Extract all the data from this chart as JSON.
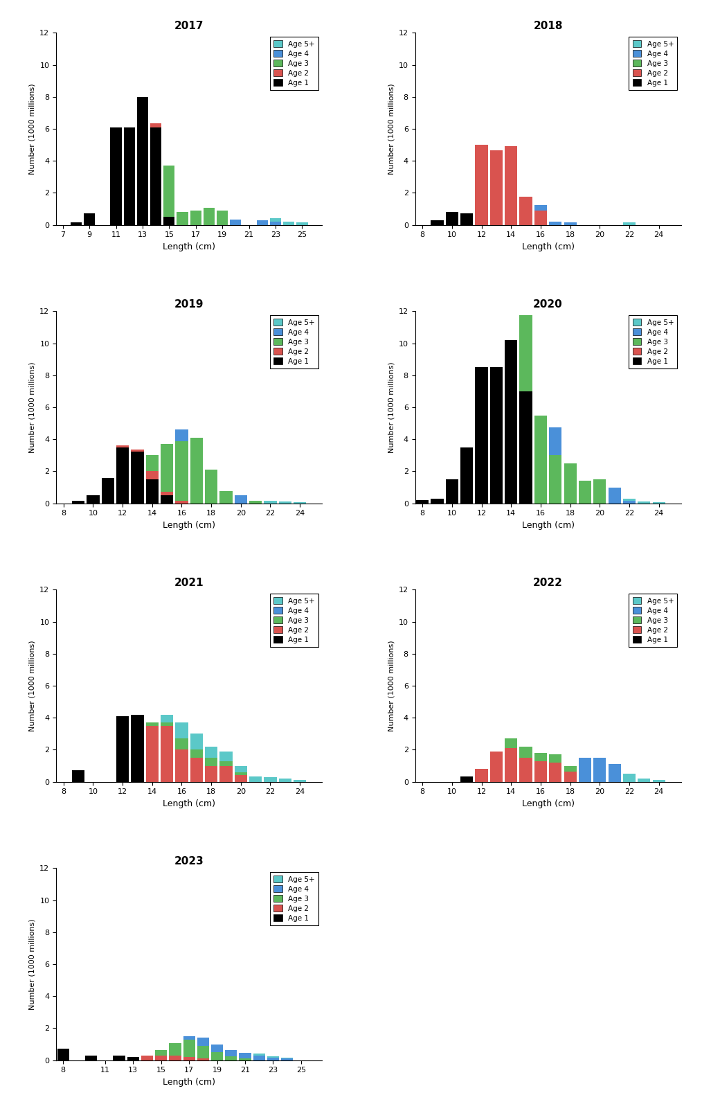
{
  "years": [
    "2017",
    "2018",
    "2019",
    "2020",
    "2021",
    "2022",
    "2023"
  ],
  "colors": {
    "Age 1": "#000000",
    "Age 2": "#d9534f",
    "Age 3": "#5cb85c",
    "Age 4": "#4a90d9",
    "Age 5+": "#5bc8c8"
  },
  "age_order": [
    "Age 1",
    "Age 2",
    "Age 3",
    "Age 4",
    "Age 5+"
  ],
  "data": {
    "2017": {
      "lengths": [
        8,
        9,
        10,
        11,
        12,
        13,
        14,
        15,
        16,
        17,
        18,
        19,
        20,
        21,
        22,
        23,
        24,
        25
      ],
      "Age 1": [
        0.15,
        0.7,
        0.0,
        6.1,
        6.1,
        8.0,
        6.1,
        0.5,
        0.0,
        0.0,
        0.0,
        0.0,
        0.0,
        0.0,
        0.0,
        0.0,
        0.0,
        0.0
      ],
      "Age 2": [
        0.0,
        0.0,
        0.0,
        0.0,
        0.0,
        0.0,
        0.25,
        0.0,
        0.0,
        0.0,
        0.0,
        0.0,
        0.0,
        0.0,
        0.0,
        0.0,
        0.0,
        0.0
      ],
      "Age 3": [
        0.0,
        0.0,
        0.0,
        0.0,
        0.0,
        0.0,
        0.0,
        3.2,
        0.8,
        0.9,
        1.05,
        0.9,
        0.0,
        0.0,
        0.0,
        0.0,
        0.0,
        0.0
      ],
      "Age 4": [
        0.0,
        0.0,
        0.0,
        0.0,
        0.0,
        0.0,
        0.0,
        0.0,
        0.0,
        0.0,
        0.0,
        0.0,
        0.35,
        0.0,
        0.3,
        0.2,
        0.0,
        0.0
      ],
      "Age 5+": [
        0.0,
        0.0,
        0.0,
        0.0,
        0.0,
        0.0,
        0.0,
        0.0,
        0.0,
        0.0,
        0.0,
        0.0,
        0.0,
        0.0,
        0.0,
        0.2,
        0.2,
        0.15
      ]
    },
    "2018": {
      "lengths": [
        9,
        10,
        11,
        12,
        13,
        14,
        15,
        16,
        17,
        18,
        19,
        20,
        21,
        22
      ],
      "Age 1": [
        0.3,
        0.8,
        0.7,
        0.0,
        0.0,
        0.0,
        0.0,
        0.0,
        0.0,
        0.0,
        0.0,
        0.0,
        0.0,
        0.0
      ],
      "Age 2": [
        0.0,
        0.0,
        0.0,
        5.0,
        4.65,
        4.9,
        1.75,
        0.9,
        0.0,
        0.0,
        0.0,
        0.0,
        0.0,
        0.0
      ],
      "Age 3": [
        0.0,
        0.0,
        0.0,
        0.0,
        0.0,
        0.0,
        0.0,
        0.0,
        0.0,
        0.0,
        0.0,
        0.0,
        0.0,
        0.0
      ],
      "Age 4": [
        0.0,
        0.0,
        0.0,
        0.0,
        0.0,
        0.0,
        0.0,
        0.35,
        0.2,
        0.15,
        0.0,
        0.0,
        0.0,
        0.0
      ],
      "Age 5+": [
        0.0,
        0.0,
        0.0,
        0.0,
        0.0,
        0.0,
        0.0,
        0.0,
        0.0,
        0.0,
        0.0,
        0.0,
        0.0,
        0.15
      ]
    },
    "2019": {
      "lengths": [
        9,
        10,
        11,
        12,
        13,
        14,
        15,
        16,
        17,
        18,
        19,
        20,
        21,
        22,
        23,
        24
      ],
      "Age 1": [
        0.15,
        0.5,
        1.6,
        3.5,
        3.25,
        1.5,
        0.5,
        0.0,
        0.0,
        0.0,
        0.0,
        0.0,
        0.0,
        0.0,
        0.0,
        0.0
      ],
      "Age 2": [
        0.0,
        0.0,
        0.0,
        0.1,
        0.1,
        0.5,
        0.2,
        0.15,
        0.0,
        0.0,
        0.0,
        0.0,
        0.0,
        0.0,
        0.0,
        0.0
      ],
      "Age 3": [
        0.0,
        0.0,
        0.0,
        0.0,
        0.0,
        1.0,
        3.0,
        3.75,
        4.1,
        2.1,
        0.75,
        0.0,
        0.15,
        0.0,
        0.0,
        0.0
      ],
      "Age 4": [
        0.0,
        0.0,
        0.0,
        0.0,
        0.0,
        0.0,
        0.0,
        0.7,
        0.0,
        0.0,
        0.0,
        0.5,
        0.0,
        0.0,
        0.0,
        0.0
      ],
      "Age 5+": [
        0.0,
        0.0,
        0.0,
        0.0,
        0.0,
        0.0,
        0.0,
        0.0,
        0.0,
        0.0,
        0.0,
        0.0,
        0.0,
        0.15,
        0.1,
        0.05
      ]
    },
    "2020": {
      "lengths": [
        8,
        9,
        10,
        11,
        12,
        13,
        14,
        15,
        16,
        17,
        18,
        19,
        20,
        21,
        22,
        23,
        24
      ],
      "Age 1": [
        0.2,
        0.3,
        1.5,
        3.5,
        8.5,
        8.5,
        10.2,
        7.0,
        0.0,
        0.0,
        0.0,
        0.0,
        0.0,
        0.0,
        0.0,
        0.0,
        0.0
      ],
      "Age 2": [
        0.0,
        0.0,
        0.0,
        0.0,
        0.0,
        0.0,
        0.0,
        0.0,
        0.0,
        0.0,
        0.0,
        0.0,
        0.0,
        0.0,
        0.0,
        0.0,
        0.0
      ],
      "Age 3": [
        0.0,
        0.0,
        0.0,
        0.0,
        0.0,
        0.0,
        0.0,
        4.75,
        5.5,
        3.0,
        2.5,
        1.4,
        1.5,
        0.0,
        0.0,
        0.0,
        0.0
      ],
      "Age 4": [
        0.0,
        0.0,
        0.0,
        0.0,
        0.0,
        0.0,
        0.0,
        0.0,
        0.0,
        1.75,
        0.0,
        0.0,
        0.0,
        1.0,
        0.15,
        0.0,
        0.0
      ],
      "Age 5+": [
        0.0,
        0.0,
        0.0,
        0.0,
        0.0,
        0.0,
        0.0,
        0.0,
        0.0,
        0.0,
        0.0,
        0.0,
        0.0,
        0.0,
        0.15,
        0.1,
        0.05
      ]
    },
    "2021": {
      "lengths": [
        9,
        10,
        11,
        12,
        13,
        14,
        15,
        16,
        17,
        18,
        19,
        20,
        21,
        22,
        23,
        24
      ],
      "Age 1": [
        0.7,
        0.0,
        0.0,
        4.1,
        4.2,
        0.0,
        0.0,
        0.0,
        0.0,
        0.0,
        0.0,
        0.0,
        0.0,
        0.0,
        0.0,
        0.0
      ],
      "Age 2": [
        0.0,
        0.0,
        0.0,
        0.0,
        0.0,
        3.5,
        3.5,
        2.0,
        1.5,
        1.0,
        1.0,
        0.4,
        0.0,
        0.0,
        0.0,
        0.0
      ],
      "Age 3": [
        0.0,
        0.0,
        0.0,
        0.0,
        0.0,
        0.2,
        0.2,
        0.7,
        0.5,
        0.5,
        0.3,
        0.2,
        0.0,
        0.0,
        0.0,
        0.0
      ],
      "Age 4": [
        0.0,
        0.0,
        0.0,
        0.0,
        0.0,
        0.0,
        0.0,
        0.0,
        0.0,
        0.0,
        0.0,
        0.0,
        0.0,
        0.0,
        0.0,
        0.0
      ],
      "Age 5+": [
        0.0,
        0.0,
        0.0,
        0.0,
        0.0,
        0.0,
        0.5,
        1.0,
        1.0,
        0.7,
        0.6,
        0.4,
        0.35,
        0.3,
        0.2,
        0.1
      ]
    },
    "2022": {
      "lengths": [
        11,
        12,
        13,
        14,
        15,
        16,
        17,
        18,
        19,
        20,
        21,
        22,
        23,
        24
      ],
      "Age 1": [
        0.35,
        0.0,
        0.0,
        0.0,
        0.0,
        0.0,
        0.0,
        0.0,
        0.0,
        0.0,
        0.0,
        0.0,
        0.0,
        0.0
      ],
      "Age 2": [
        0.0,
        0.8,
        1.9,
        2.1,
        1.5,
        1.3,
        1.2,
        0.65,
        0.0,
        0.0,
        0.0,
        0.0,
        0.0,
        0.0
      ],
      "Age 3": [
        0.0,
        0.0,
        0.0,
        0.6,
        0.7,
        0.5,
        0.5,
        0.35,
        0.0,
        0.0,
        0.0,
        0.0,
        0.0,
        0.0
      ],
      "Age 4": [
        0.0,
        0.0,
        0.0,
        0.0,
        0.0,
        0.0,
        0.0,
        0.0,
        1.5,
        1.5,
        1.1,
        0.0,
        0.0,
        0.0
      ],
      "Age 5+": [
        0.0,
        0.0,
        0.0,
        0.0,
        0.0,
        0.0,
        0.0,
        0.0,
        0.0,
        0.0,
        0.0,
        0.5,
        0.2,
        0.1
      ]
    },
    "2023": {
      "lengths": [
        8,
        9,
        10,
        11,
        12,
        13,
        14,
        15,
        16,
        17,
        18,
        19,
        20,
        21,
        22,
        23,
        24,
        25
      ],
      "Age 1": [
        0.7,
        0.0,
        0.3,
        0.0,
        0.3,
        0.2,
        0.0,
        0.0,
        0.0,
        0.0,
        0.0,
        0.0,
        0.0,
        0.0,
        0.0,
        0.0,
        0.0,
        0.0
      ],
      "Age 2": [
        0.0,
        0.0,
        0.0,
        0.0,
        0.0,
        0.0,
        0.3,
        0.3,
        0.3,
        0.2,
        0.1,
        0.0,
        0.0,
        0.0,
        0.0,
        0.0,
        0.0,
        0.0
      ],
      "Age 3": [
        0.0,
        0.0,
        0.0,
        0.0,
        0.0,
        0.0,
        0.0,
        0.35,
        0.75,
        1.1,
        0.8,
        0.5,
        0.25,
        0.1,
        0.0,
        0.0,
        0.0,
        0.0
      ],
      "Age 4": [
        0.0,
        0.0,
        0.0,
        0.0,
        0.0,
        0.0,
        0.0,
        0.0,
        0.0,
        0.2,
        0.5,
        0.5,
        0.4,
        0.35,
        0.3,
        0.15,
        0.1,
        0.0
      ],
      "Age 5+": [
        0.0,
        0.0,
        0.0,
        0.0,
        0.0,
        0.0,
        0.0,
        0.0,
        0.0,
        0.0,
        0.0,
        0.0,
        0.0,
        0.0,
        0.1,
        0.1,
        0.05,
        0.0
      ]
    }
  },
  "xlims": {
    "2017": [
      6.5,
      26.5
    ],
    "2018": [
      7.5,
      25.5
    ],
    "2019": [
      7.5,
      25.5
    ],
    "2020": [
      7.5,
      25.5
    ],
    "2021": [
      7.5,
      25.5
    ],
    "2022": [
      7.5,
      25.5
    ],
    "2023": [
      7.5,
      26.5
    ]
  },
  "xticks": {
    "2017": [
      7,
      9,
      11,
      13,
      15,
      17,
      19,
      21,
      23,
      25
    ],
    "2018": [
      8,
      10,
      12,
      14,
      16,
      18,
      20,
      22,
      24
    ],
    "2019": [
      8,
      10,
      12,
      14,
      16,
      18,
      20,
      22,
      24
    ],
    "2020": [
      8,
      10,
      12,
      14,
      16,
      18,
      20,
      22,
      24
    ],
    "2021": [
      8,
      10,
      12,
      14,
      16,
      18,
      20,
      22,
      24
    ],
    "2022": [
      8,
      10,
      12,
      14,
      16,
      18,
      20,
      22,
      24
    ],
    "2023": [
      8,
      11,
      13,
      15,
      17,
      19,
      21,
      23,
      25
    ]
  },
  "ylim": [
    0,
    12
  ],
  "yticks": [
    0,
    2,
    4,
    6,
    8,
    10,
    12
  ],
  "ylabel": "Number (1000 millions)",
  "xlabel": "Length (cm)",
  "bar_width": 0.85
}
